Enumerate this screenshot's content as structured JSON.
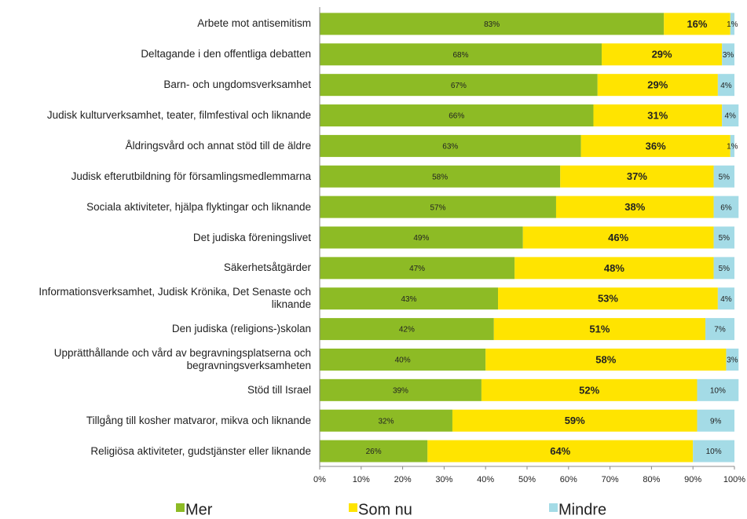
{
  "chart_data": {
    "type": "stacked_barh",
    "categories": [
      "Arbete mot antisemitism",
      "Deltagande i den offentliga debatten",
      "Barn- och ungdomsverksamhet",
      "Judisk kulturverksamhet, teater, filmfestival och liknande",
      "Åldringsvård och annat stöd till de äldre",
      "Judisk efterutbildning för församlingsmedlemmarna",
      "Sociala aktiviteter, hjälpa flyktingar och liknande",
      "Det judiska föreningslivet",
      "Säkerhetsåtgärder",
      "Informationsverksamhet, Judisk Krönika, Det Senaste och liknande",
      "Den judiska (religions-)skolan",
      "Upprätthållande och vård av begravningsplatserna och begravningsverksamheten",
      "Stöd till Israel",
      "Tillgång till kosher matvaror, mikva och liknande",
      "Religiösa aktiviteter, gudstjänster eller liknande"
    ],
    "series": [
      {
        "name": "Mer",
        "color": "#8dbb25",
        "values": [
          83,
          68,
          67,
          66,
          63,
          58,
          57,
          49,
          47,
          43,
          42,
          40,
          39,
          32,
          26
        ],
        "value_labels": [
          "83%",
          "68%",
          "67%",
          "66%",
          "63%",
          "58%",
          "57%",
          "49%",
          "47%",
          "43%",
          "42%",
          "40%",
          "39%",
          "32%",
          "26%"
        ]
      },
      {
        "name": "Som nu",
        "color": "#ffe400",
        "values": [
          16,
          29,
          29,
          31,
          36,
          37,
          38,
          46,
          48,
          53,
          51,
          58,
          52,
          59,
          64
        ],
        "value_labels": [
          "16%",
          "29%",
          "29%",
          "31%",
          "36%",
          "37%",
          "38%",
          "46%",
          "48%",
          "53%",
          "51%",
          "58%",
          "52%",
          "59%",
          "64%"
        ]
      },
      {
        "name": "Mindre",
        "color": "#a4dbe6",
        "values": [
          1,
          3,
          4,
          4,
          1,
          5,
          6,
          5,
          5,
          4,
          7,
          3,
          10,
          9,
          10
        ],
        "value_labels": [
          "1%",
          "3%",
          "4%",
          "4%",
          "1%",
          "5%",
          "6%",
          "5%",
          "5%",
          "4%",
          "7%",
          "3%",
          "10%",
          "9%",
          "10%"
        ]
      }
    ],
    "xlim": [
      0,
      100
    ],
    "xticks": [
      {
        "value": 0,
        "label": "0%"
      },
      {
        "value": 10,
        "label": "10%"
      },
      {
        "value": 20,
        "label": "20%"
      },
      {
        "value": 30,
        "label": "30%"
      },
      {
        "value": 40,
        "label": "40%"
      },
      {
        "value": 50,
        "label": "50%"
      },
      {
        "value": 60,
        "label": "60%"
      },
      {
        "value": 70,
        "label": "70%"
      },
      {
        "value": 80,
        "label": "80%"
      },
      {
        "value": 90,
        "label": "90%"
      },
      {
        "value": 100,
        "label": "100%"
      }
    ],
    "legend": "bottom"
  }
}
